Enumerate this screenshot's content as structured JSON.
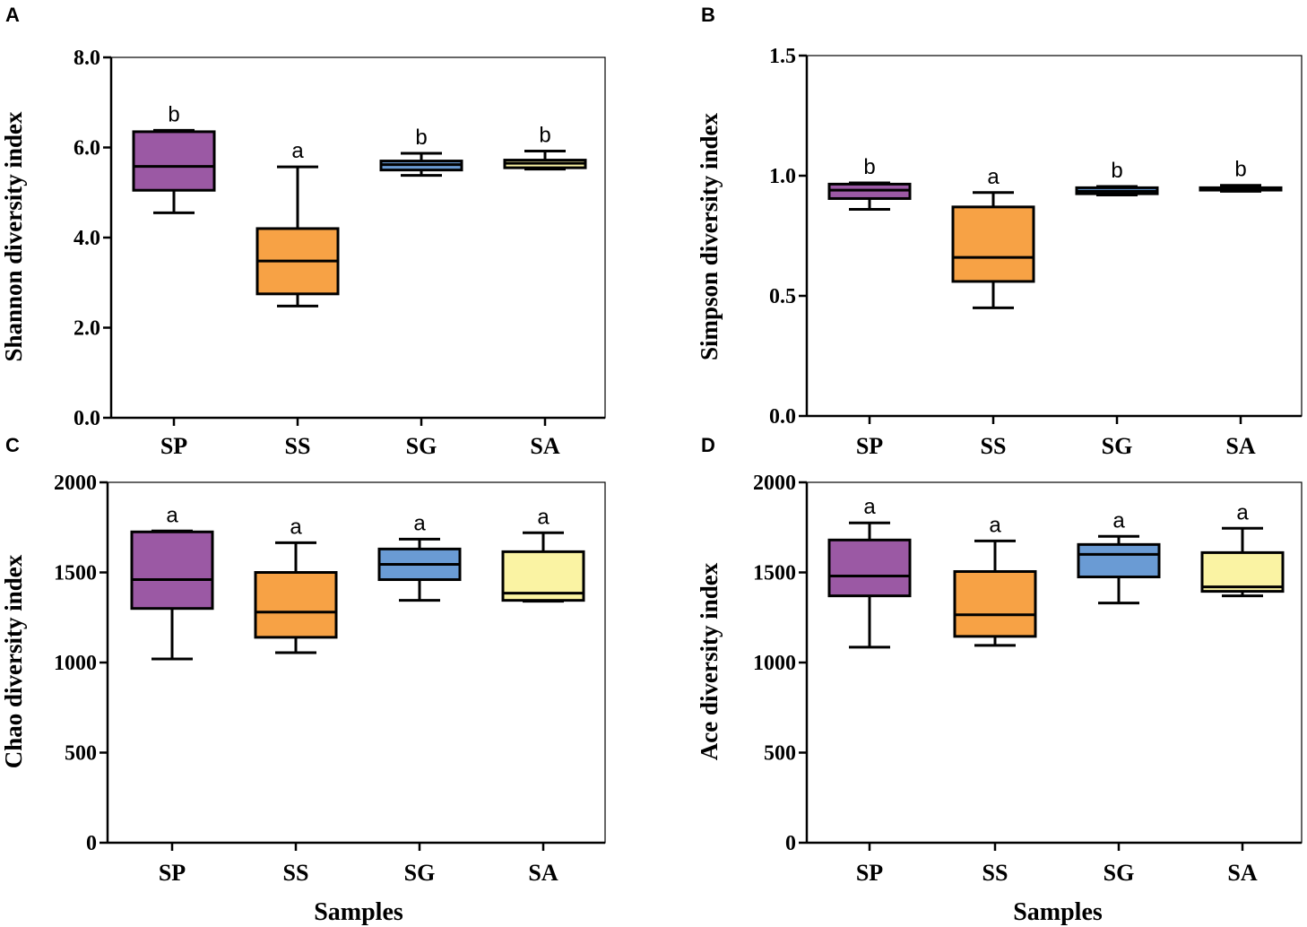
{
  "colors": {
    "SP": "#9b59a4",
    "SS": "#f7a245",
    "SG": "#6a9bd4",
    "SA": "#faf3a3",
    "stroke": "#000000"
  },
  "chart_data": [
    {
      "panel": "A",
      "type": "box",
      "ylabel": "Shannon diversity index",
      "xlabel": "",
      "ylim": [
        0,
        8
      ],
      "yticks": [
        "0.0",
        "2.0",
        "4.0",
        "6.0",
        "8.0"
      ],
      "ytick_values": [
        0,
        2,
        4,
        6,
        8
      ],
      "categories": [
        "SP",
        "SS",
        "SG",
        "SA"
      ],
      "boxes": [
        {
          "min": 4.55,
          "q1": 5.05,
          "median": 5.58,
          "q3": 6.35,
          "max": 6.38,
          "sig": "b"
        },
        {
          "min": 2.48,
          "q1": 2.75,
          "median": 3.48,
          "q3": 4.2,
          "max": 5.57,
          "sig": "a"
        },
        {
          "min": 5.38,
          "q1": 5.5,
          "median": 5.62,
          "q3": 5.7,
          "max": 5.87,
          "sig": "b"
        },
        {
          "min": 5.52,
          "q1": 5.55,
          "median": 5.65,
          "q3": 5.72,
          "max": 5.92,
          "sig": "b"
        }
      ]
    },
    {
      "panel": "B",
      "type": "box",
      "ylabel": "Simpson diversity index",
      "xlabel": "",
      "ylim": [
        0,
        1.5
      ],
      "yticks": [
        "0.0",
        "0.5",
        "1.0",
        "1.5"
      ],
      "ytick_values": [
        0,
        0.5,
        1.0,
        1.5
      ],
      "categories": [
        "SP",
        "SS",
        "SG",
        "SA"
      ],
      "boxes": [
        {
          "min": 0.86,
          "q1": 0.905,
          "median": 0.94,
          "q3": 0.965,
          "max": 0.97,
          "sig": "b"
        },
        {
          "min": 0.45,
          "q1": 0.56,
          "median": 0.66,
          "q3": 0.87,
          "max": 0.93,
          "sig": "a"
        },
        {
          "min": 0.92,
          "q1": 0.925,
          "median": 0.935,
          "q3": 0.95,
          "max": 0.955,
          "sig": "b"
        },
        {
          "min": 0.935,
          "q1": 0.94,
          "median": 0.945,
          "q3": 0.95,
          "max": 0.96,
          "sig": "b"
        }
      ]
    },
    {
      "panel": "C",
      "type": "box",
      "ylabel": "Chao diversity index",
      "xlabel": "Samples",
      "ylim": [
        0,
        2000
      ],
      "yticks": [
        "0",
        "500",
        "1000",
        "1500",
        "2000"
      ],
      "ytick_values": [
        0,
        500,
        1000,
        1500,
        2000
      ],
      "categories": [
        "SP",
        "SS",
        "SG",
        "SA"
      ],
      "boxes": [
        {
          "min": 1020,
          "q1": 1300,
          "median": 1460,
          "q3": 1725,
          "max": 1730,
          "sig": "a"
        },
        {
          "min": 1055,
          "q1": 1140,
          "median": 1280,
          "q3": 1500,
          "max": 1665,
          "sig": "a"
        },
        {
          "min": 1345,
          "q1": 1460,
          "median": 1545,
          "q3": 1630,
          "max": 1685,
          "sig": "a"
        },
        {
          "min": 1340,
          "q1": 1345,
          "median": 1385,
          "q3": 1615,
          "max": 1720,
          "sig": "a"
        }
      ]
    },
    {
      "panel": "D",
      "type": "box",
      "ylabel": "Ace diversity index",
      "xlabel": "Samples",
      "ylim": [
        0,
        2000
      ],
      "yticks": [
        "0",
        "500",
        "1000",
        "1500",
        "2000"
      ],
      "ytick_values": [
        0,
        500,
        1000,
        1500,
        2000
      ],
      "categories": [
        "SP",
        "SS",
        "SG",
        "SA"
      ],
      "boxes": [
        {
          "min": 1085,
          "q1": 1370,
          "median": 1480,
          "q3": 1680,
          "max": 1775,
          "sig": "a"
        },
        {
          "min": 1095,
          "q1": 1145,
          "median": 1265,
          "q3": 1505,
          "max": 1675,
          "sig": "a"
        },
        {
          "min": 1330,
          "q1": 1475,
          "median": 1600,
          "q3": 1655,
          "max": 1700,
          "sig": "a"
        },
        {
          "min": 1370,
          "q1": 1395,
          "median": 1420,
          "q3": 1610,
          "max": 1745,
          "sig": "a"
        }
      ]
    }
  ]
}
